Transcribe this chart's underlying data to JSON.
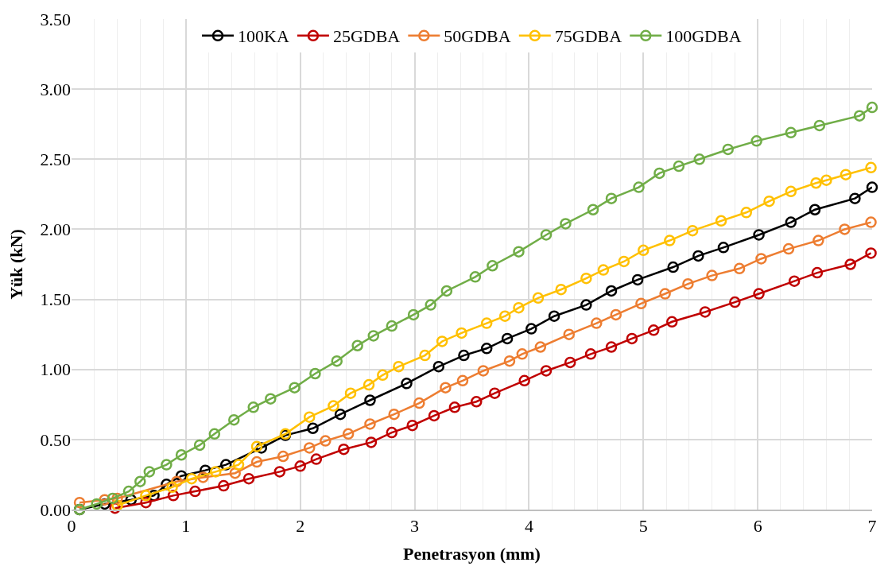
{
  "chart_data": {
    "type": "line",
    "xlabel": "Penetrasyon (mm)",
    "ylabel": "Yük (kN)",
    "xlim": [
      0,
      7
    ],
    "xticks": [
      0,
      1,
      2,
      3,
      4,
      5,
      6,
      7
    ],
    "ylim": [
      0,
      3.5
    ],
    "yticks": [
      {
        "value": 0,
        "label": "0.00"
      },
      {
        "value": 0.5,
        "label": "0.50"
      },
      {
        "value": 1,
        "label": "1.00"
      },
      {
        "value": 1.5,
        "label": "1.50"
      },
      {
        "value": 2,
        "label": "2.00"
      },
      {
        "value": 2.5,
        "label": "2.50"
      },
      {
        "value": 3,
        "label": "3.00"
      },
      {
        "value": 3.5,
        "label": "3.50"
      }
    ],
    "grid": true,
    "legend": "top",
    "marker": "circle",
    "line_style": "solid",
    "series": [
      {
        "name": "100KA",
        "color": "#000000",
        "x": [
          0.07,
          0.29,
          0.52,
          0.72,
          0.83,
          0.96,
          1.17,
          1.35,
          1.66,
          1.87,
          2.11,
          2.35,
          2.61,
          2.93,
          3.21,
          3.43,
          3.63,
          3.81,
          4.02,
          4.22,
          4.5,
          4.72,
          4.95,
          5.26,
          5.48,
          5.7,
          6.01,
          6.29,
          6.5,
          6.85,
          7.0
        ],
        "values": [
          0,
          0.04,
          0.07,
          0.1,
          0.18,
          0.24,
          0.28,
          0.32,
          0.44,
          0.53,
          0.58,
          0.68,
          0.78,
          0.9,
          1.02,
          1.1,
          1.15,
          1.22,
          1.29,
          1.38,
          1.46,
          1.56,
          1.64,
          1.73,
          1.81,
          1.87,
          1.96,
          2.05,
          2.14,
          2.22,
          2.3
        ]
      },
      {
        "name": "25GDBA",
        "color": "#c00000",
        "x": [
          0.38,
          0.65,
          0.89,
          1.08,
          1.33,
          1.55,
          1.82,
          2.0,
          2.14,
          2.38,
          2.62,
          2.8,
          2.98,
          3.17,
          3.35,
          3.54,
          3.7,
          3.96,
          4.15,
          4.36,
          4.54,
          4.72,
          4.9,
          5.09,
          5.25,
          5.54,
          5.8,
          6.01,
          6.32,
          6.52,
          6.81,
          6.99
        ],
        "values": [
          0.01,
          0.05,
          0.1,
          0.13,
          0.17,
          0.22,
          0.27,
          0.31,
          0.36,
          0.43,
          0.48,
          0.55,
          0.6,
          0.67,
          0.73,
          0.77,
          0.83,
          0.92,
          0.99,
          1.05,
          1.11,
          1.16,
          1.22,
          1.28,
          1.34,
          1.41,
          1.48,
          1.54,
          1.63,
          1.69,
          1.75,
          1.83
        ]
      },
      {
        "name": "50GDBA",
        "color": "#ed7d31",
        "x": [
          0.07,
          0.29,
          0.4,
          0.92,
          1.15,
          1.43,
          1.62,
          1.85,
          2.08,
          2.22,
          2.42,
          2.61,
          2.82,
          3.04,
          3.27,
          3.42,
          3.6,
          3.83,
          3.94,
          4.1,
          4.35,
          4.59,
          4.76,
          4.98,
          5.19,
          5.39,
          5.6,
          5.84,
          6.03,
          6.27,
          6.53,
          6.76,
          6.99
        ],
        "values": [
          0.05,
          0.07,
          0.08,
          0.2,
          0.23,
          0.26,
          0.34,
          0.38,
          0.44,
          0.49,
          0.54,
          0.61,
          0.68,
          0.76,
          0.87,
          0.92,
          0.99,
          1.06,
          1.11,
          1.16,
          1.25,
          1.33,
          1.39,
          1.47,
          1.54,
          1.61,
          1.67,
          1.72,
          1.79,
          1.86,
          1.92,
          2.0,
          2.05
        ]
      },
      {
        "name": "75GDBA",
        "color": "#ffc000",
        "x": [
          0.4,
          0.65,
          0.88,
          1.05,
          1.26,
          1.46,
          1.62,
          1.87,
          2.08,
          2.29,
          2.44,
          2.6,
          2.72,
          2.86,
          3.09,
          3.24,
          3.41,
          3.63,
          3.79,
          3.91,
          4.08,
          4.28,
          4.5,
          4.65,
          4.83,
          5.0,
          5.23,
          5.43,
          5.68,
          5.9,
          6.1,
          6.29,
          6.51,
          6.6,
          6.77,
          6.99
        ],
        "values": [
          0.03,
          0.1,
          0.16,
          0.22,
          0.27,
          0.32,
          0.45,
          0.54,
          0.66,
          0.74,
          0.83,
          0.89,
          0.96,
          1.02,
          1.1,
          1.2,
          1.26,
          1.33,
          1.38,
          1.44,
          1.51,
          1.57,
          1.65,
          1.71,
          1.77,
          1.85,
          1.92,
          1.99,
          2.06,
          2.12,
          2.2,
          2.27,
          2.33,
          2.35,
          2.39,
          2.44
        ]
      },
      {
        "name": "100GDBA",
        "color": "#70ad47",
        "x": [
          0.07,
          0.22,
          0.36,
          0.5,
          0.6,
          0.68,
          0.83,
          0.96,
          1.12,
          1.25,
          1.42,
          1.59,
          1.74,
          1.95,
          2.13,
          2.32,
          2.5,
          2.64,
          2.8,
          2.99,
          3.14,
          3.28,
          3.53,
          3.68,
          3.91,
          4.15,
          4.32,
          4.56,
          4.72,
          4.96,
          5.14,
          5.31,
          5.49,
          5.74,
          5.99,
          6.29,
          6.54,
          6.89,
          7.0
        ],
        "values": [
          0,
          0.04,
          0.08,
          0.13,
          0.2,
          0.27,
          0.32,
          0.39,
          0.46,
          0.54,
          0.64,
          0.73,
          0.79,
          0.87,
          0.97,
          1.06,
          1.17,
          1.24,
          1.31,
          1.39,
          1.46,
          1.56,
          1.66,
          1.74,
          1.84,
          1.96,
          2.04,
          2.14,
          2.22,
          2.3,
          2.4,
          2.45,
          2.5,
          2.57,
          2.63,
          2.69,
          2.74,
          2.81,
          2.87
        ]
      }
    ]
  }
}
